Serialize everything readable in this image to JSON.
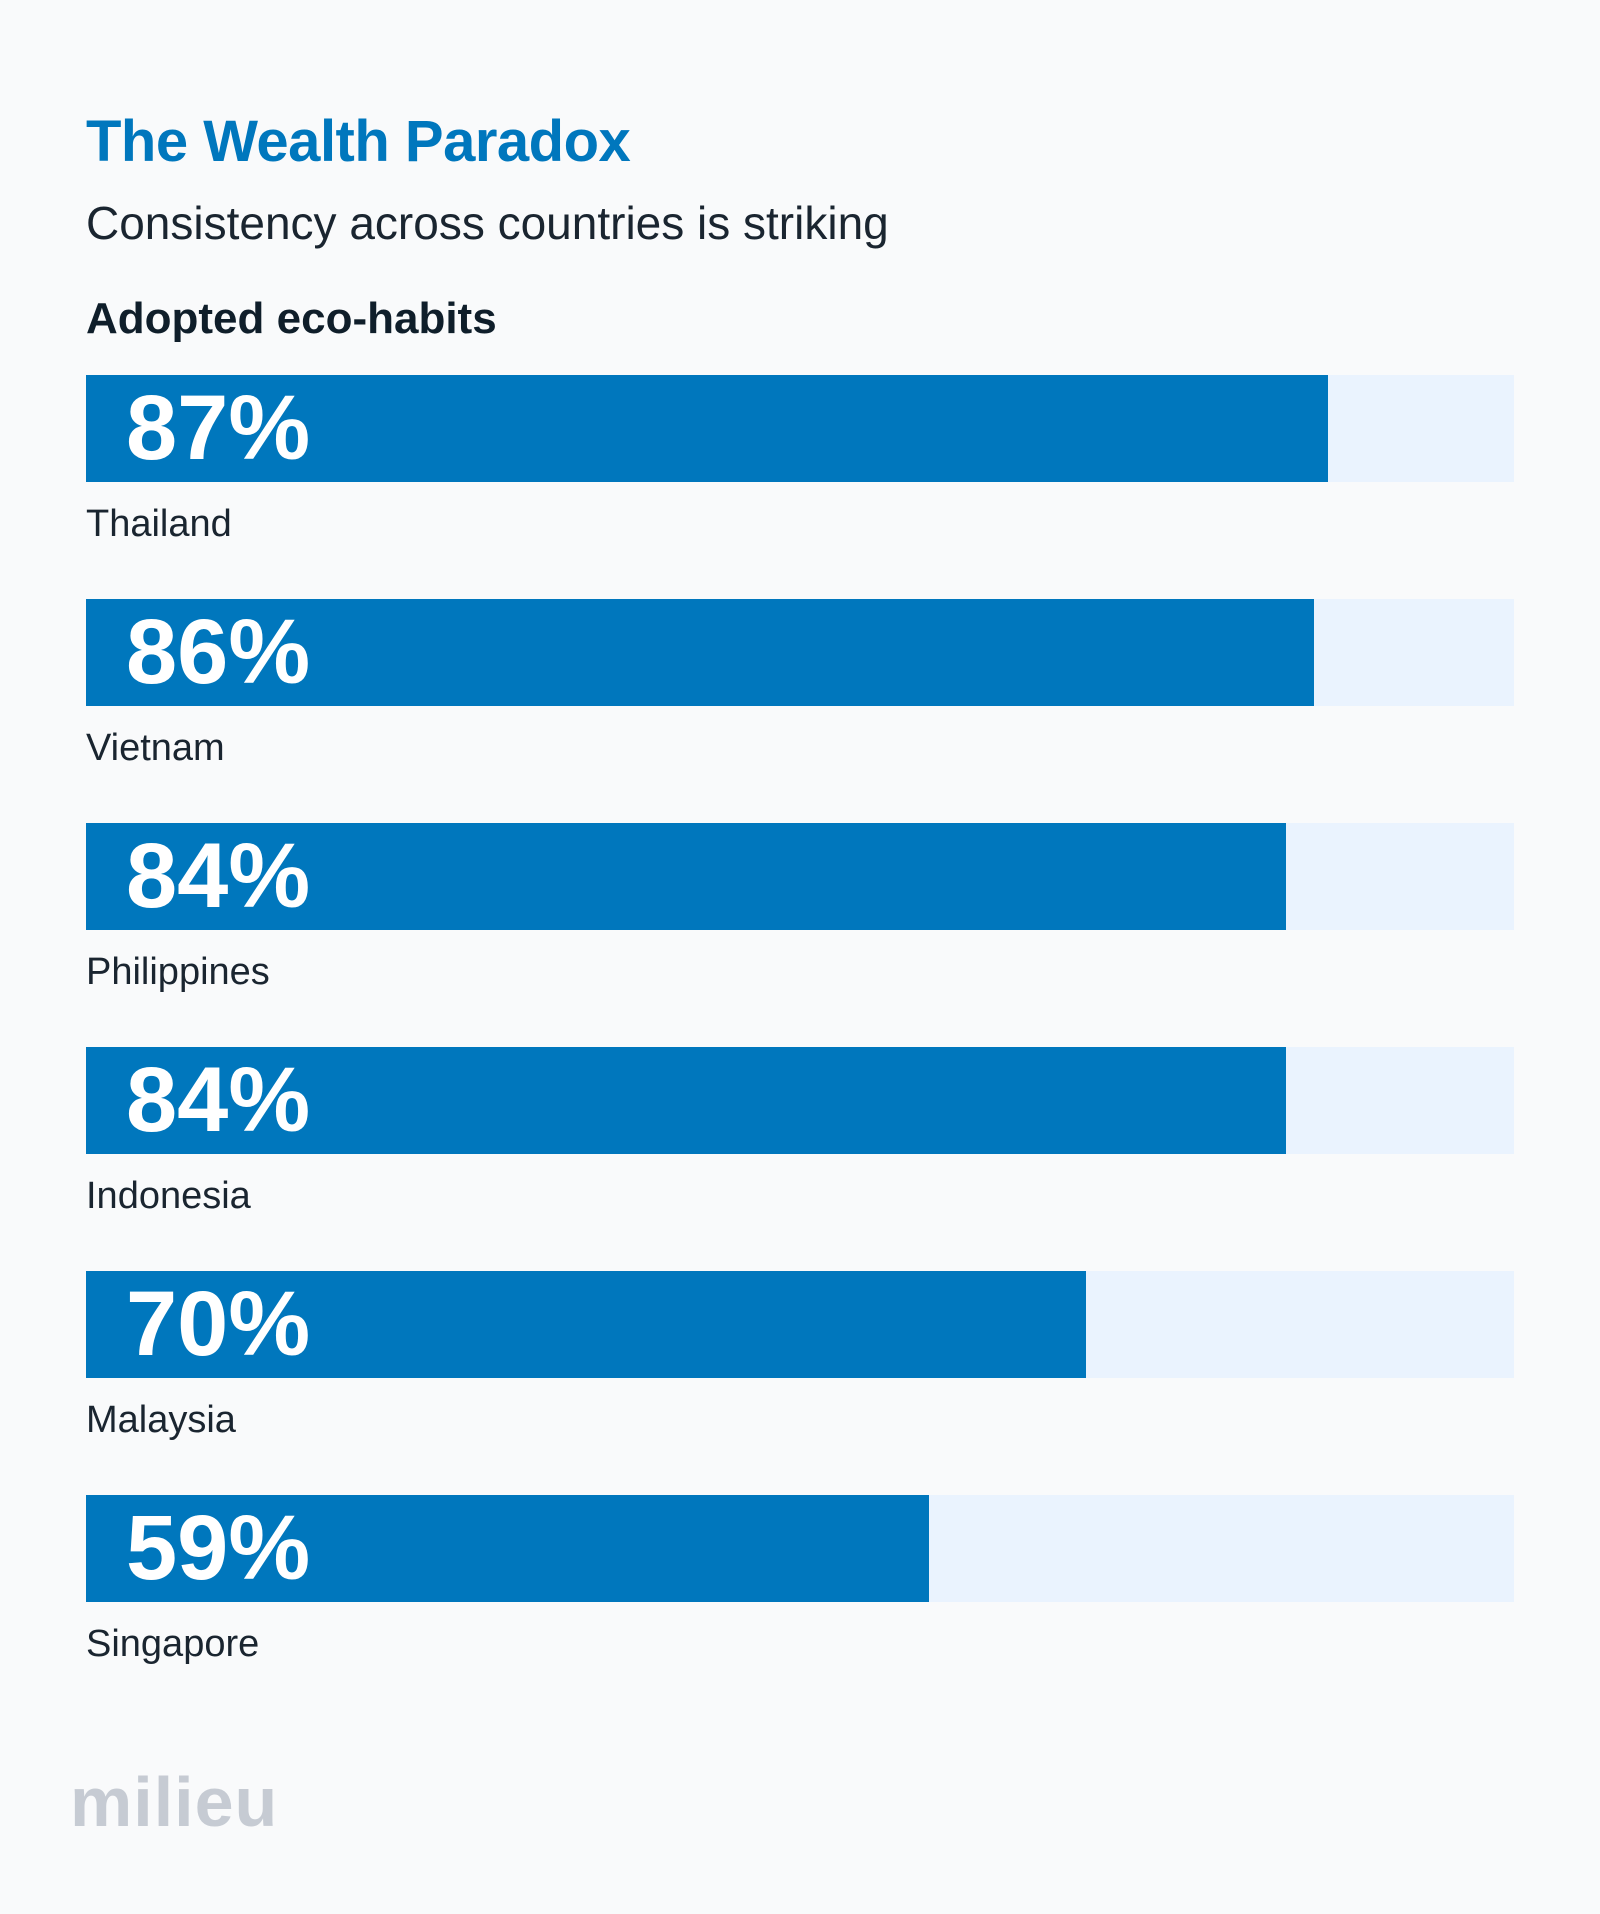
{
  "header": {
    "title": "The Wealth Paradox",
    "subtitle": "Consistency across countries is striking"
  },
  "chart_data": {
    "type": "bar",
    "orientation": "horizontal",
    "label": "Adopted eco-habits",
    "categories": [
      "Thailand",
      "Vietnam",
      "Philippines",
      "Indonesia",
      "Malaysia",
      "Singapore"
    ],
    "values": [
      87,
      86,
      84,
      84,
      70,
      59
    ],
    "value_labels": [
      "87%",
      "86%",
      "84%",
      "84%",
      "70%",
      "59%"
    ],
    "xlim": [
      0,
      100
    ],
    "grid": false,
    "colors": {
      "bar": "#0077bd",
      "track": "#eaf3fe"
    }
  },
  "brand": {
    "logo_text": "milieu"
  }
}
